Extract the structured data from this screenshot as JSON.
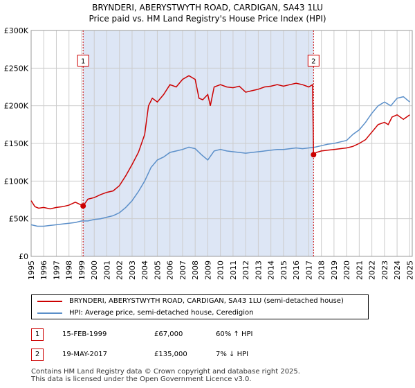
{
  "title_line1": "BRYNDERI, ABERYSTWYTH ROAD, CARDIGAN, SA43 1LU",
  "title_line2": "Price paid vs. HM Land Registry's House Price Index (HPI)",
  "colors": {
    "property": "#cc0000",
    "hpi": "#5b8fc9",
    "shade": "#dde6f5",
    "grid": "#cccccc",
    "marker_line": "#cc0000"
  },
  "chart_data": {
    "type": "line",
    "title": "BRYNDERI, ABERYSTWYTH ROAD, CARDIGAN, SA43 1LU",
    "xlim": [
      1995,
      2025.2
    ],
    "ylim": [
      0,
      300000
    ],
    "x_ticks": [
      "1995",
      "1996",
      "1997",
      "1998",
      "1999",
      "2000",
      "2001",
      "2002",
      "2003",
      "2004",
      "2005",
      "2006",
      "2007",
      "2008",
      "2009",
      "2010",
      "2011",
      "2012",
      "2013",
      "2014",
      "2015",
      "2016",
      "2017",
      "2018",
      "2019",
      "2020",
      "2021",
      "2022",
      "2023",
      "2024",
      "2025"
    ],
    "y_ticks": [
      {
        "value": 0,
        "label": "£0"
      },
      {
        "value": 50000,
        "label": "£50K"
      },
      {
        "value": 100000,
        "label": "£100K"
      },
      {
        "value": 150000,
        "label": "£150K"
      },
      {
        "value": 200000,
        "label": "£200K"
      },
      {
        "value": 250000,
        "label": "£250K"
      },
      {
        "value": 300000,
        "label": "£300K"
      }
    ],
    "shaded_range": [
      1999.12,
      2017.38
    ],
    "markers": [
      {
        "label": "1",
        "x": 1999.12,
        "y": 67000,
        "label_y": 260000
      },
      {
        "label": "2",
        "x": 2017.38,
        "y": 135000,
        "label_y": 260000
      }
    ],
    "series": [
      {
        "name": "BRYNDERI, ABERYSTWYTH ROAD, CARDIGAN, SA43 1LU (semi-detached house)",
        "color": "#cc0000",
        "x": [
          1995.0,
          1995.3,
          1995.6,
          1996.0,
          1996.5,
          1997.0,
          1997.5,
          1998.0,
          1998.5,
          1999.12,
          1999.5,
          2000.0,
          2000.5,
          2001.0,
          2001.5,
          2002.0,
          2002.5,
          2003.0,
          2003.5,
          2004.0,
          2004.3,
          2004.6,
          2005.0,
          2005.5,
          2006.0,
          2006.5,
          2007.0,
          2007.5,
          2008.0,
          2008.3,
          2008.6,
          2009.0,
          2009.2,
          2009.5,
          2010.0,
          2010.5,
          2011.0,
          2011.5,
          2012.0,
          2012.5,
          2013.0,
          2013.5,
          2014.0,
          2014.5,
          2015.0,
          2015.5,
          2016.0,
          2016.5,
          2017.0,
          2017.3,
          2017.38,
          2017.6,
          2018.0,
          2018.5,
          2019.0,
          2019.5,
          2020.0,
          2020.5,
          2021.0,
          2021.5,
          2022.0,
          2022.5,
          2023.0,
          2023.3,
          2023.6,
          2024.0,
          2024.5,
          2025.0
        ],
        "y": [
          74000,
          66000,
          64000,
          65000,
          63000,
          65000,
          66000,
          68000,
          72000,
          67000,
          76000,
          78000,
          82000,
          85000,
          87000,
          94000,
          107000,
          122000,
          138000,
          162000,
          200000,
          210000,
          205000,
          215000,
          228000,
          225000,
          235000,
          240000,
          235000,
          210000,
          208000,
          215000,
          200000,
          225000,
          228000,
          225000,
          224000,
          226000,
          218000,
          220000,
          222000,
          225000,
          226000,
          228000,
          226000,
          228000,
          230000,
          228000,
          225000,
          228000,
          135000,
          138000,
          140000,
          141000,
          142000,
          143000,
          144000,
          146000,
          150000,
          155000,
          165000,
          175000,
          178000,
          175000,
          185000,
          188000,
          182000,
          188000
        ]
      },
      {
        "name": "HPI: Average price, semi-detached house, Ceredigion",
        "color": "#5b8fc9",
        "x": [
          1995.0,
          1995.5,
          1996.0,
          1996.5,
          1997.0,
          1997.5,
          1998.0,
          1998.5,
          1999.0,
          1999.5,
          2000.0,
          2000.5,
          2001.0,
          2001.5,
          2002.0,
          2002.5,
          2003.0,
          2003.5,
          2004.0,
          2004.5,
          2005.0,
          2005.5,
          2006.0,
          2006.5,
          2007.0,
          2007.5,
          2008.0,
          2008.5,
          2009.0,
          2009.5,
          2010.0,
          2010.5,
          2011.0,
          2011.5,
          2012.0,
          2012.5,
          2013.0,
          2013.5,
          2014.0,
          2014.5,
          2015.0,
          2015.5,
          2016.0,
          2016.5,
          2017.0,
          2017.5,
          2018.0,
          2018.5,
          2019.0,
          2019.5,
          2020.0,
          2020.5,
          2021.0,
          2021.5,
          2022.0,
          2022.5,
          2023.0,
          2023.5,
          2024.0,
          2024.5,
          2025.0
        ],
        "y": [
          42000,
          40000,
          40000,
          41000,
          42000,
          43000,
          44000,
          45000,
          47000,
          47000,
          49000,
          50000,
          52000,
          54000,
          58000,
          65000,
          74000,
          86000,
          100000,
          118000,
          128000,
          132000,
          138000,
          140000,
          142000,
          145000,
          143000,
          135000,
          128000,
          140000,
          142000,
          140000,
          139000,
          138000,
          137000,
          138000,
          139000,
          140000,
          141000,
          142000,
          142000,
          143000,
          144000,
          143000,
          144000,
          145000,
          147000,
          149000,
          150000,
          152000,
          154000,
          162000,
          168000,
          178000,
          190000,
          200000,
          205000,
          200000,
          210000,
          212000,
          205000
        ]
      }
    ]
  },
  "legend": {
    "property_label": "BRYNDERI, ABERYSTWYTH ROAD, CARDIGAN, SA43 1LU (semi-detached house)",
    "hpi_label": "HPI: Average price, semi-detached house, Ceredigion"
  },
  "transactions": [
    {
      "num": "1",
      "date": "15-FEB-1999",
      "price": "£67,000",
      "hpi": "60% ↑ HPI"
    },
    {
      "num": "2",
      "date": "19-MAY-2017",
      "price": "£135,000",
      "hpi": "7% ↓ HPI"
    }
  ],
  "footer_line1": "Contains HM Land Registry data © Crown copyright and database right 2025.",
  "footer_line2": "This data is licensed under the Open Government Licence v3.0."
}
